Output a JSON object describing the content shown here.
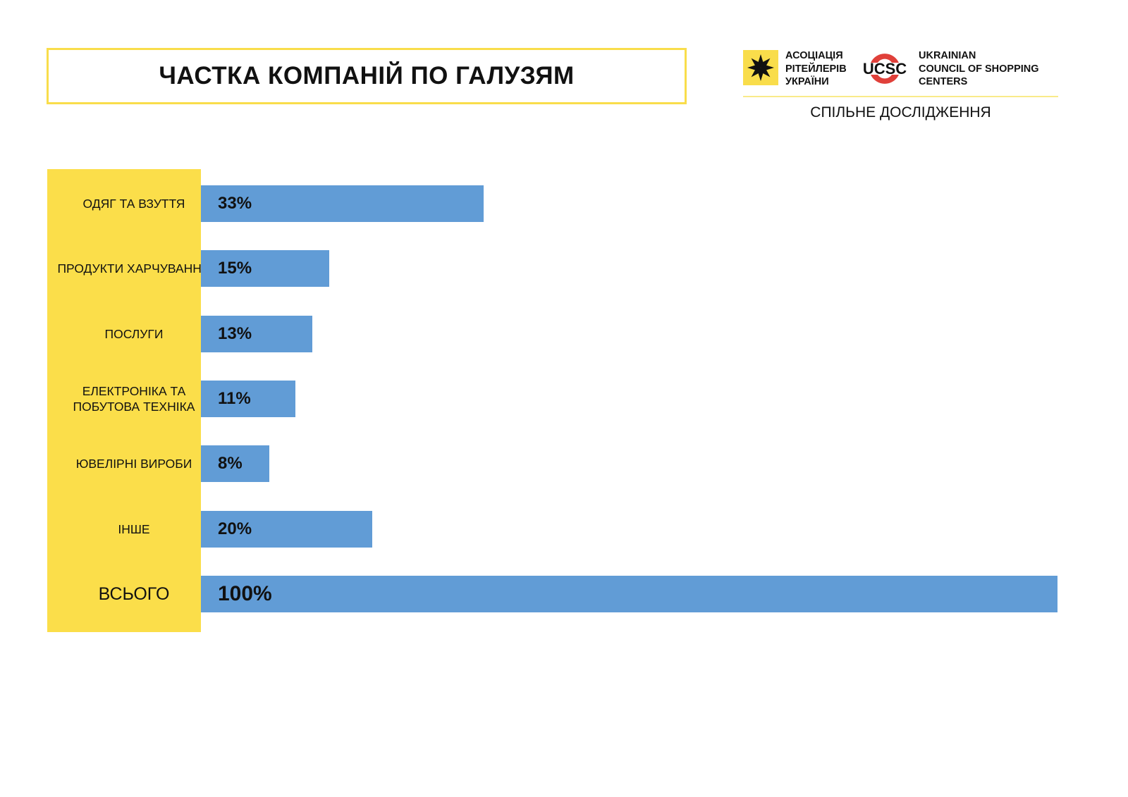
{
  "title": "ЧАСТКА КОМПАНІЙ ПО ГАЛУЗЯМ",
  "logos": {
    "aru_lines": [
      "АСОЦІАЦІЯ",
      "РІТЕЙЛЕРІВ",
      "УКРАЇНИ"
    ],
    "ucsc_mark": "UCSC",
    "ucsc_lines": [
      "UKRAINIAN",
      "COUNCIL OF SHOPPING",
      "CENTERS"
    ],
    "subtitle": "СПІЛЬНЕ ДОСЛІДЖЕННЯ"
  },
  "colors": {
    "bar": "#619cd6",
    "label_bg": "#fbde4a",
    "ucsc_red": "#e0403a"
  },
  "chart_data": {
    "type": "bar",
    "orientation": "horizontal",
    "categories": [
      "ОДЯГ ТА ВЗУТТЯ",
      "ПРОДУКТИ ХАРЧУВАННЯ",
      "ПОСЛУГИ",
      "ЕЛЕКТРОНІКА ТА ПОБУТОВА ТЕХНІКА",
      "ЮВЕЛІРНІ ВИРОБИ",
      "ІНШЕ",
      "ВСЬОГО"
    ],
    "values": [
      33,
      15,
      13,
      11,
      8,
      20,
      100
    ],
    "data_labels": [
      "33%",
      "15%",
      "13%",
      "11%",
      "8%",
      "20%",
      "100%"
    ],
    "xlim": [
      0,
      100
    ],
    "grid": false
  }
}
